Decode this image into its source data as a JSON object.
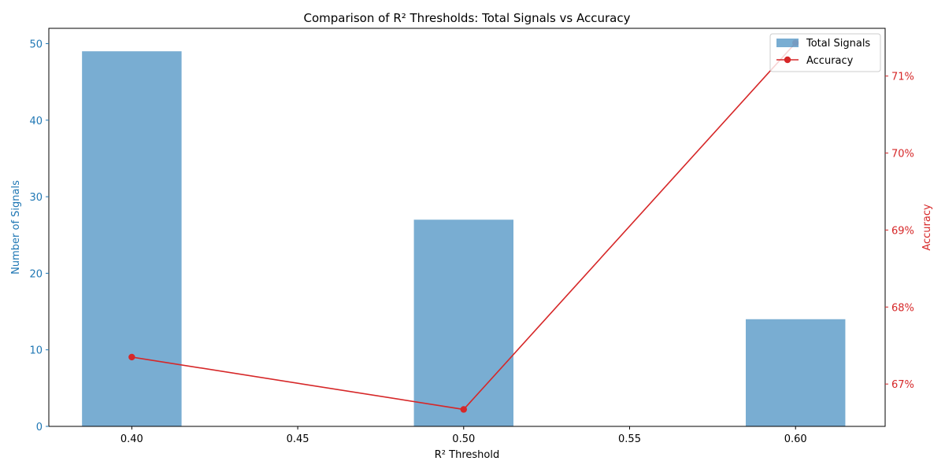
{
  "chart_data": {
    "type": "bar",
    "title": "Comparison of R² Thresholds: Total Signals vs Accuracy",
    "xlabel": "R² Threshold",
    "ylabel_left": "Number of Signals",
    "ylabel_right": "Accuracy",
    "x": [
      0.4,
      0.5,
      0.6
    ],
    "x_ticks": [
      "0.40",
      "0.45",
      "0.50",
      "0.55",
      "0.60"
    ],
    "x_tick_values": [
      0.4,
      0.45,
      0.5,
      0.55,
      0.6
    ],
    "xlim": [
      0.375,
      0.627
    ],
    "left_ticks": [
      0,
      10,
      20,
      30,
      40,
      50
    ],
    "ylim_left": [
      0,
      52
    ],
    "right_ticks": [
      "67%",
      "68%",
      "69%",
      "70%",
      "71%"
    ],
    "right_tick_values": [
      0.67,
      0.68,
      0.69,
      0.7,
      0.71
    ],
    "ylim_right": [
      0.6645,
      0.7162
    ],
    "bar_width": 0.03,
    "series": [
      {
        "name": "Total Signals",
        "type": "bar",
        "axis": "left",
        "color": "#1f77b4",
        "opacity": 0.6,
        "values": [
          49,
          27,
          14
        ]
      },
      {
        "name": "Accuracy",
        "type": "line",
        "axis": "right",
        "color": "#d62728",
        "values": [
          0.6735,
          0.6667,
          0.7143
        ]
      }
    ],
    "left_axis_color": "#1f77b4",
    "right_axis_color": "#d62728",
    "grid": false,
    "legend": "top-right"
  }
}
